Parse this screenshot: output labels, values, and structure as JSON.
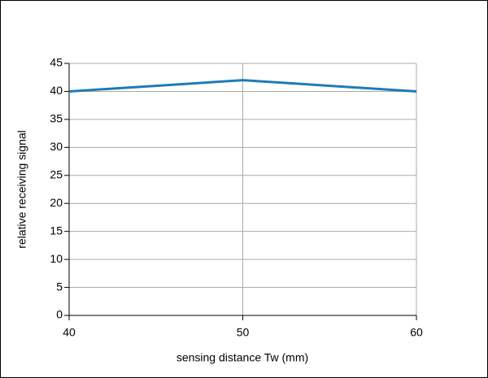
{
  "chart_data": {
    "type": "line",
    "x": [
      40,
      50,
      60
    ],
    "series": [
      {
        "name": null,
        "color": "#1f7bb6",
        "values": [
          40,
          42,
          40
        ]
      }
    ],
    "xlabel": "sensing distance Tw (mm)",
    "ylabel": "relative receiving signal",
    "xlim": [
      40,
      60
    ],
    "xticks": [
      40,
      50,
      60
    ],
    "ylim": [
      0,
      45
    ],
    "yticks": [
      0,
      5,
      10,
      15,
      20,
      25,
      30,
      35,
      40,
      45
    ],
    "grid": true
  }
}
